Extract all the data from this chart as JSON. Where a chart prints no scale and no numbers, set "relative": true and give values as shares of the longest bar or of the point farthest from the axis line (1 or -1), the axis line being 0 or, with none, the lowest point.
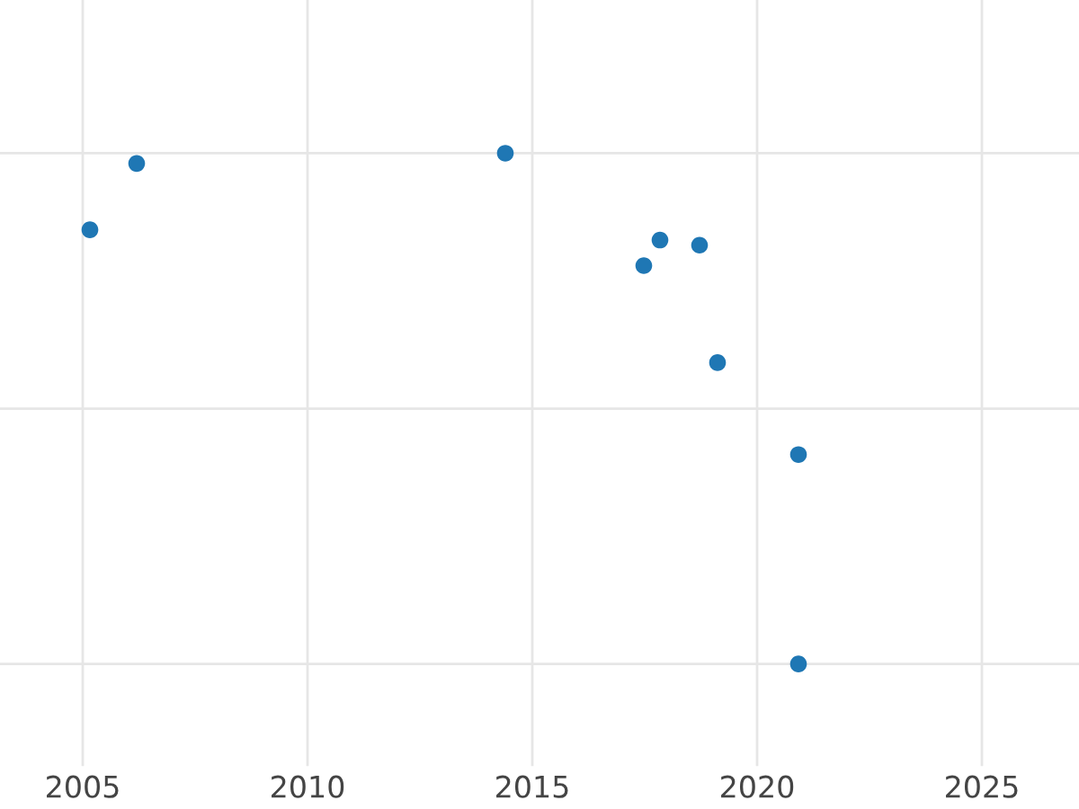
{
  "chart_data": {
    "type": "scatter",
    "relative": true,
    "x": [
      2005.16,
      2006.2,
      2014.4,
      2017.48,
      2017.84,
      2018.72,
      2019.12,
      2020.92,
      2020.92
    ],
    "series": [
      {
        "color": "#1f77b4",
        "values": [
          0.85,
          0.98,
          1,
          0.78,
          0.83,
          0.82,
          0.59,
          0.41,
          0
        ]
      }
    ],
    "xlim": [
      2003.16,
      2027.16
    ],
    "xticks": [
      2005,
      2010,
      2015,
      2020,
      2025
    ],
    "grid": true,
    "marker": "circle",
    "tick_labels": "x"
  }
}
